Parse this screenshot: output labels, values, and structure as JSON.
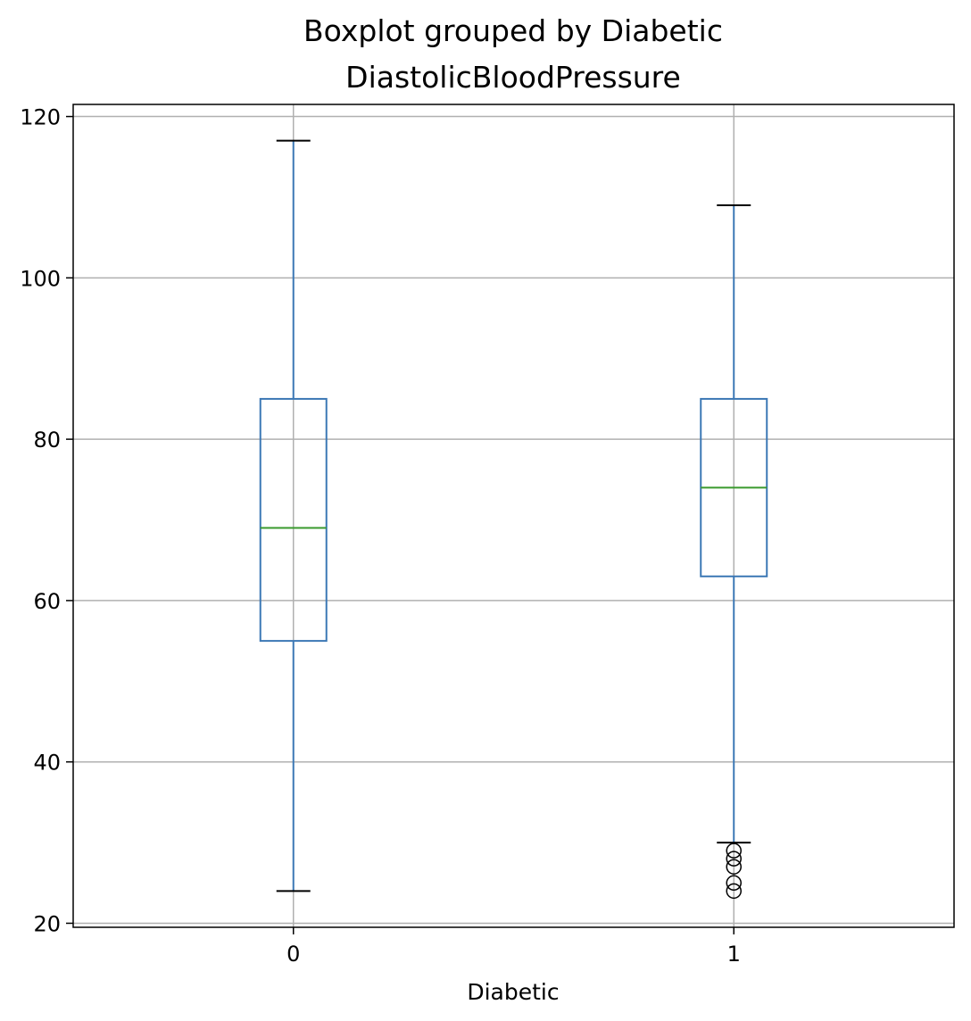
{
  "chart_data": {
    "type": "boxplot",
    "title": "Boxplot grouped by Diabetic",
    "subtitle": "DiastolicBloodPressure",
    "xlabel": "Diabetic",
    "ylabel": "",
    "ylim": [
      19.5,
      121.5
    ],
    "yticks": [
      20,
      40,
      60,
      80,
      100,
      120
    ],
    "grid": true,
    "categories": [
      "0",
      "1"
    ],
    "boxes": [
      {
        "category": "0",
        "whisker_low": 24,
        "q1": 55,
        "median": 69,
        "q3": 85,
        "whisker_high": 117,
        "outliers": []
      },
      {
        "category": "1",
        "whisker_low": 30,
        "q1": 63,
        "median": 74,
        "q3": 85,
        "whisker_high": 109,
        "outliers": [
          24,
          25,
          27,
          28,
          29
        ]
      }
    ],
    "colors": {
      "box": "#3c78b5",
      "median": "#3a9a2e",
      "whisker": "#3c78b5",
      "cap": "#000000",
      "outlier": "#000000",
      "grid": "#b0b0b0",
      "axis": "#000000"
    }
  }
}
